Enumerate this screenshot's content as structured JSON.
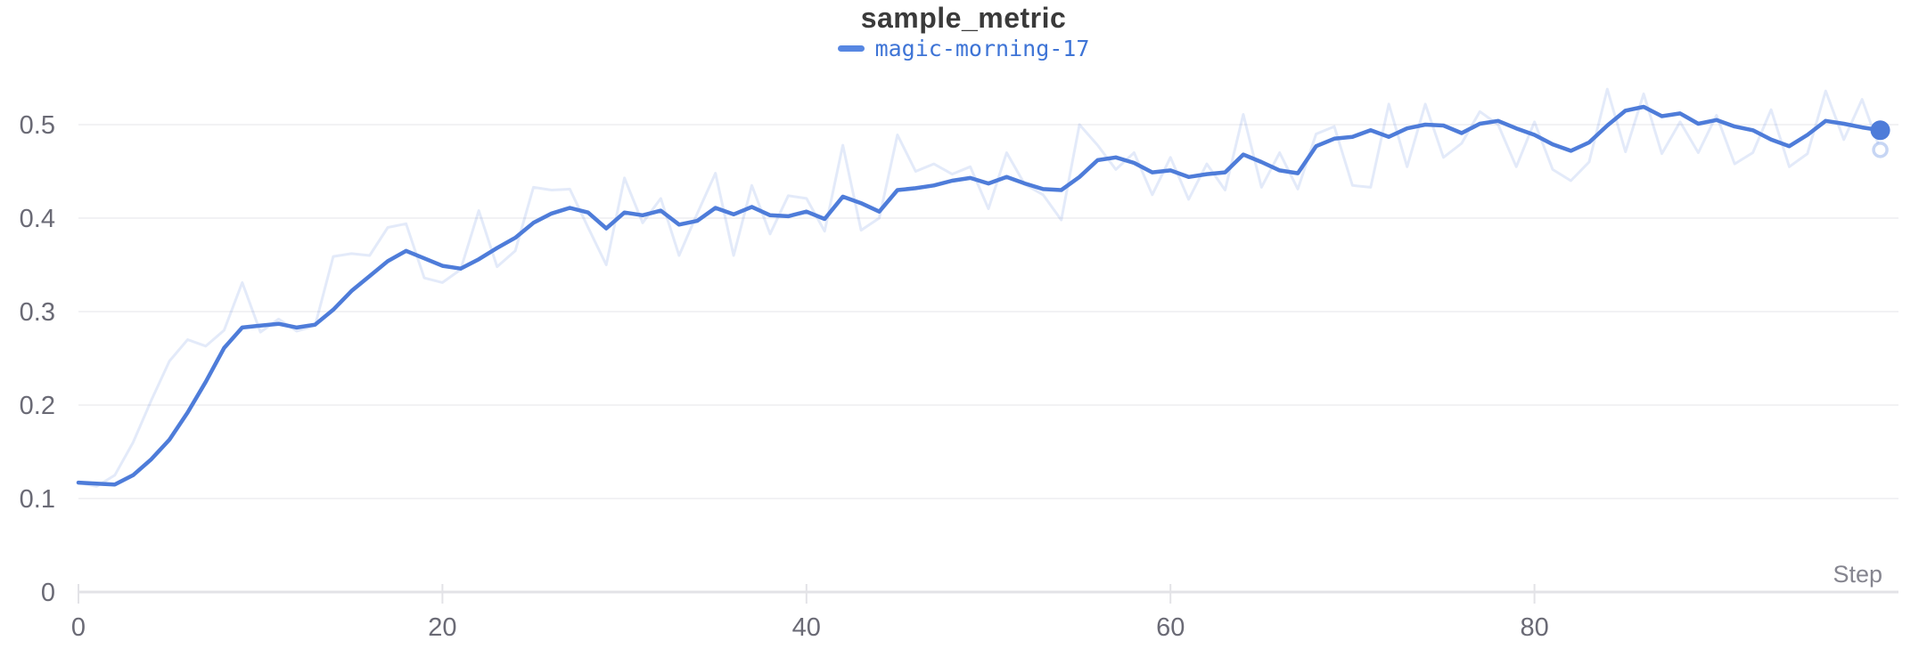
{
  "chart": {
    "panel_type": "wandb-line-panel"
  },
  "chart_data": {
    "type": "line",
    "title": "sample_metric",
    "xlabel": "Step",
    "ylabel": "",
    "x_range": [
      0,
      100
    ],
    "y_range": [
      0,
      0.55
    ],
    "x_ticks": [
      0,
      20,
      40,
      60,
      80
    ],
    "y_ticks": [
      0,
      0.1,
      0.2,
      0.3,
      0.4,
      0.5
    ],
    "grid": "horizontal",
    "legend_position": "top-center",
    "x_start": 0,
    "x_step": 1,
    "series": [
      {
        "name": "magic-morning-17 (original)",
        "role": "raw",
        "end_marker": "open-circle",
        "values": [
          0.117,
          0.113,
          0.125,
          0.16,
          0.205,
          0.247,
          0.27,
          0.263,
          0.28,
          0.331,
          0.278,
          0.292,
          0.279,
          0.285,
          0.359,
          0.362,
          0.36,
          0.39,
          0.394,
          0.336,
          0.331,
          0.345,
          0.408,
          0.348,
          0.365,
          0.433,
          0.43,
          0.431,
          0.39,
          0.35,
          0.443,
          0.395,
          0.421,
          0.36,
          0.405,
          0.448,
          0.36,
          0.435,
          0.383,
          0.424,
          0.421,
          0.386,
          0.478,
          0.387,
          0.4,
          0.489,
          0.45,
          0.458,
          0.447,
          0.455,
          0.41,
          0.47,
          0.436,
          0.425,
          0.398,
          0.5,
          0.478,
          0.452,
          0.47,
          0.425,
          0.465,
          0.42,
          0.458,
          0.43,
          0.511,
          0.433,
          0.47,
          0.431,
          0.49,
          0.498,
          0.435,
          0.433,
          0.522,
          0.455,
          0.522,
          0.465,
          0.48,
          0.514,
          0.5,
          0.455,
          0.503,
          0.452,
          0.44,
          0.46,
          0.538,
          0.471,
          0.533,
          0.469,
          0.503,
          0.47,
          0.51,
          0.458,
          0.47,
          0.516,
          0.455,
          0.469,
          0.536,
          0.484,
          0.527,
          0.473
        ]
      },
      {
        "name": "magic-morning-17",
        "role": "smoothed",
        "end_marker": "dot",
        "values": [
          0.117,
          0.116,
          0.115,
          0.125,
          0.142,
          0.163,
          0.192,
          0.225,
          0.261,
          0.283,
          0.285,
          0.287,
          0.283,
          0.286,
          0.302,
          0.322,
          0.338,
          0.354,
          0.365,
          0.357,
          0.349,
          0.346,
          0.356,
          0.368,
          0.379,
          0.395,
          0.405,
          0.411,
          0.406,
          0.389,
          0.406,
          0.403,
          0.408,
          0.393,
          0.397,
          0.411,
          0.404,
          0.412,
          0.403,
          0.402,
          0.407,
          0.399,
          0.423,
          0.416,
          0.407,
          0.43,
          0.432,
          0.435,
          0.44,
          0.443,
          0.437,
          0.444,
          0.437,
          0.431,
          0.43,
          0.444,
          0.462,
          0.465,
          0.459,
          0.449,
          0.451,
          0.444,
          0.447,
          0.449,
          0.468,
          0.46,
          0.451,
          0.448,
          0.477,
          0.485,
          0.487,
          0.494,
          0.487,
          0.496,
          0.5,
          0.499,
          0.491,
          0.501,
          0.504,
          0.496,
          0.489,
          0.479,
          0.472,
          0.481,
          0.499,
          0.515,
          0.519,
          0.509,
          0.512,
          0.501,
          0.505,
          0.498,
          0.494,
          0.484,
          0.477,
          0.489,
          0.504,
          0.501,
          0.497,
          0.494
        ]
      }
    ],
    "colors": {
      "line_accent": "#4e7cd9",
      "raw_line": "rgba(80,126,220,0.16)",
      "raw_ring_stroke": "rgba(80,126,220,0.32)",
      "gridline": "#ededf0",
      "axis_line": "#e3e3e7",
      "tick_label": "#6a6a75",
      "axis_title": "#85858f",
      "title_text": "#3a3a3a",
      "legend_text": "#3e74d6",
      "legend_marker": "#5787e2"
    }
  }
}
